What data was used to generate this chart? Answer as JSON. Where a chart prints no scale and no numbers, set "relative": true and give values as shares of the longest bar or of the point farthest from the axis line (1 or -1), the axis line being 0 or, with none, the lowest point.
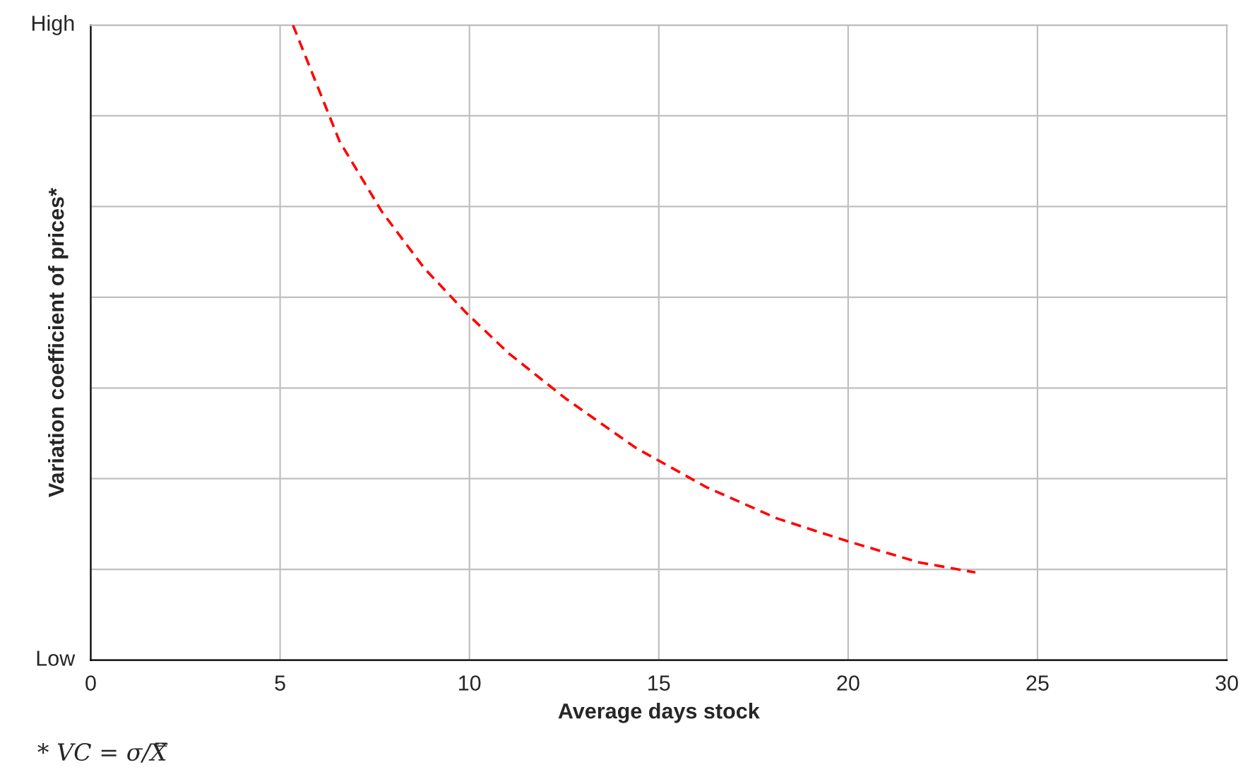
{
  "chart_data": {
    "type": "line",
    "xlabel": "Average days stock",
    "ylabel": "Variation coefficient of prices*",
    "annotations": [
      "High",
      "Low",
      "* VC = σ/X̿"
    ],
    "relative": true,
    "xlim": [
      0,
      30
    ],
    "xticks": [
      0,
      5,
      10,
      15,
      20,
      25,
      30
    ],
    "grid": true,
    "legend": false,
    "marker": "none",
    "line_style": "dashed",
    "series": [
      {
        "color": "#ff0000",
        "x": [
          5.34,
          6.57,
          7.69,
          8.81,
          9.93,
          11.04,
          12.54,
          14.4,
          16.27,
          18.13,
          20.0,
          21.87,
          23.36
        ],
        "values": [
          1.0,
          0.817,
          0.706,
          0.617,
          0.546,
          0.483,
          0.412,
          0.334,
          0.272,
          0.223,
          0.187,
          0.154,
          0.138
        ]
      }
    ]
  }
}
